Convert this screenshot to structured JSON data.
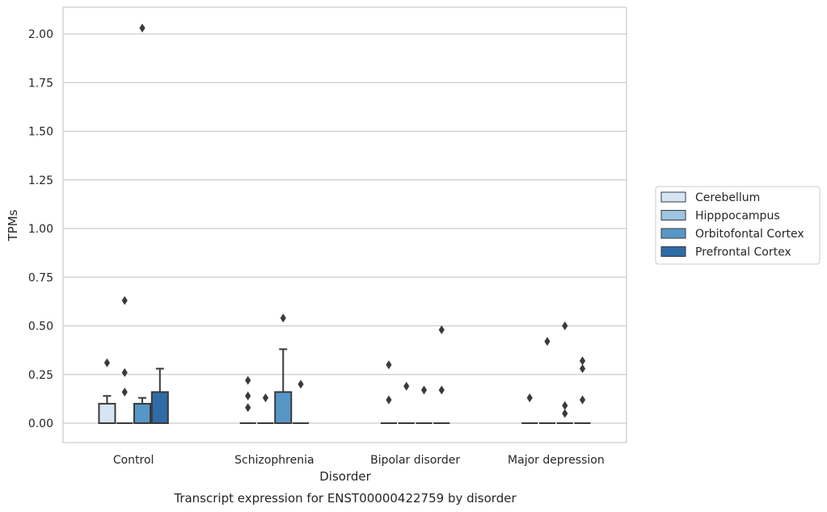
{
  "chart_data": {
    "type": "box",
    "title": "",
    "caption": "Transcript expression for ENST00000422759 by disorder",
    "xlabel": "Disorder",
    "ylabel": "TPMs",
    "ylim": [
      -0.1,
      2.13
    ],
    "yticks": [
      0.0,
      0.25,
      0.5,
      0.75,
      1.0,
      1.25,
      1.5,
      1.75,
      2.0
    ],
    "ytick_labels": [
      "0.00",
      "0.25",
      "0.50",
      "0.75",
      "1.00",
      "1.25",
      "1.50",
      "1.75",
      "2.00"
    ],
    "grid": "horizontal",
    "legend_position": "right",
    "categories": [
      "Control",
      "Schizophrenia",
      "Bipolar disorder",
      "Major depression"
    ],
    "series": [
      {
        "name": "Cerebellum",
        "color": "#d6e5f4",
        "boxes": [
          {
            "q1": 0.0,
            "median": 0.0,
            "q3": 0.1,
            "whisker_low": 0.0,
            "whisker_high": 0.14,
            "outliers": [
              0.31
            ]
          },
          {
            "q1": 0.0,
            "median": 0.0,
            "q3": 0.0,
            "whisker_low": 0.0,
            "whisker_high": 0.0,
            "outliers": [
              0.22,
              0.14,
              0.08
            ]
          },
          {
            "q1": 0.0,
            "median": 0.0,
            "q3": 0.0,
            "whisker_low": 0.0,
            "whisker_high": 0.0,
            "outliers": [
              0.3,
              0.12
            ]
          },
          {
            "q1": 0.0,
            "median": 0.0,
            "q3": 0.0,
            "whisker_low": 0.0,
            "whisker_high": 0.0,
            "outliers": [
              0.13
            ]
          }
        ]
      },
      {
        "name": "Hipppocampus",
        "color": "#9cc5e0",
        "boxes": [
          {
            "q1": 0.0,
            "median": 0.0,
            "q3": 0.0,
            "whisker_low": 0.0,
            "whisker_high": 0.0,
            "outliers": [
              0.63,
              0.26,
              0.16
            ]
          },
          {
            "q1": 0.0,
            "median": 0.0,
            "q3": 0.0,
            "whisker_low": 0.0,
            "whisker_high": 0.0,
            "outliers": [
              0.13
            ]
          },
          {
            "q1": 0.0,
            "median": 0.0,
            "q3": 0.0,
            "whisker_low": 0.0,
            "whisker_high": 0.0,
            "outliers": [
              0.19
            ]
          },
          {
            "q1": 0.0,
            "median": 0.0,
            "q3": 0.0,
            "whisker_low": 0.0,
            "whisker_high": 0.0,
            "outliers": [
              0.42
            ]
          }
        ]
      },
      {
        "name": "Orbitofontal Cortex",
        "color": "#5697c7",
        "boxes": [
          {
            "q1": 0.0,
            "median": 0.0,
            "q3": 0.1,
            "whisker_low": 0.0,
            "whisker_high": 0.13,
            "outliers": [
              2.03
            ]
          },
          {
            "q1": 0.0,
            "median": 0.0,
            "q3": 0.16,
            "whisker_low": 0.0,
            "whisker_high": 0.38,
            "outliers": [
              0.54
            ]
          },
          {
            "q1": 0.0,
            "median": 0.0,
            "q3": 0.0,
            "whisker_low": 0.0,
            "whisker_high": 0.0,
            "outliers": [
              0.17
            ]
          },
          {
            "q1": 0.0,
            "median": 0.0,
            "q3": 0.0,
            "whisker_low": 0.0,
            "whisker_high": 0.0,
            "outliers": [
              0.5,
              0.09,
              0.05
            ]
          }
        ]
      },
      {
        "name": "Prefrontal Cortex",
        "color": "#2f6ba7",
        "boxes": [
          {
            "q1": 0.0,
            "median": 0.0,
            "q3": 0.16,
            "whisker_low": 0.0,
            "whisker_high": 0.28,
            "outliers": []
          },
          {
            "q1": 0.0,
            "median": 0.0,
            "q3": 0.0,
            "whisker_low": 0.0,
            "whisker_high": 0.0,
            "outliers": [
              0.2
            ]
          },
          {
            "q1": 0.0,
            "median": 0.0,
            "q3": 0.0,
            "whisker_low": 0.0,
            "whisker_high": 0.0,
            "outliers": [
              0.48,
              0.17
            ]
          },
          {
            "q1": 0.0,
            "median": 0.0,
            "q3": 0.0,
            "whisker_low": 0.0,
            "whisker_high": 0.0,
            "outliers": [
              0.32,
              0.28,
              0.12
            ]
          }
        ]
      }
    ]
  }
}
